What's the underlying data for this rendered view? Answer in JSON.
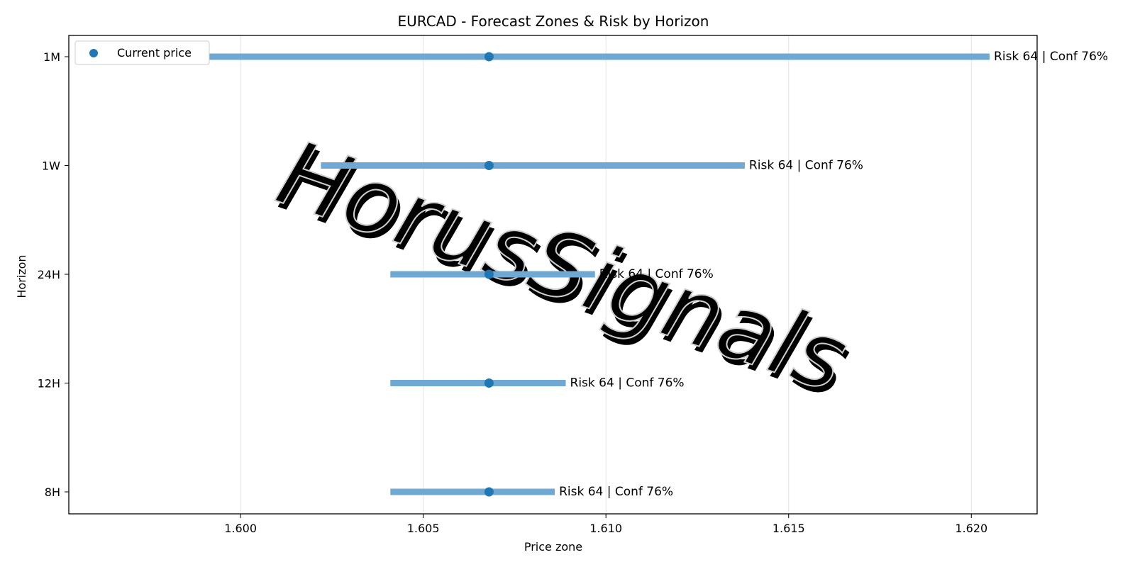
{
  "chart_data": {
    "type": "range",
    "title": "EURCAD - Forecast Zones & Risk by Horizon",
    "xlabel": "Price zone",
    "ylabel": "Horizon",
    "xlim": [
      1.5953,
      1.6218
    ],
    "xticks": [
      1.6,
      1.605,
      1.61,
      1.615,
      1.62
    ],
    "xtick_labels": [
      "1.600",
      "1.605",
      "1.610",
      "1.615",
      "1.620"
    ],
    "categories": [
      "1M",
      "1W",
      "24H",
      "12H",
      "8H"
    ],
    "series": [
      {
        "horizon": "1M",
        "low": 1.5966,
        "high": 1.6205,
        "current": 1.6068,
        "label": "Risk 64 | Conf 76%"
      },
      {
        "horizon": "1W",
        "low": 1.6022,
        "high": 1.6138,
        "current": 1.6068,
        "label": "Risk 64 | Conf 76%"
      },
      {
        "horizon": "24H",
        "low": 1.6041,
        "high": 1.6097,
        "current": 1.6068,
        "label": "Risk 64 | Conf 76%"
      },
      {
        "horizon": "12H",
        "low": 1.6041,
        "high": 1.6089,
        "current": 1.6068,
        "label": "Risk 64 | Conf 76%"
      },
      {
        "horizon": "8H",
        "low": 1.6041,
        "high": 1.6086,
        "current": 1.6068,
        "label": "Risk 64 | Conf 76%"
      }
    ],
    "legend": {
      "label": "Current price",
      "placement": "top-left"
    },
    "grid": "vertical",
    "colors": {
      "bar": "#6fa8d2",
      "marker": "#1f77b4"
    }
  },
  "watermark": {
    "text": "HorusSignals"
  }
}
